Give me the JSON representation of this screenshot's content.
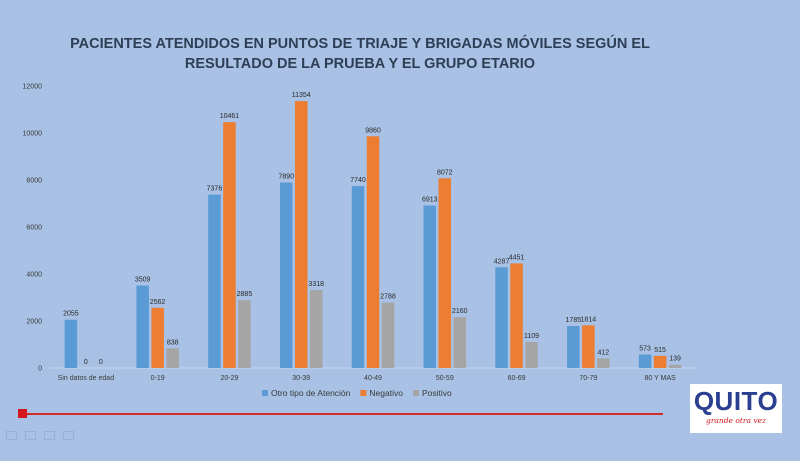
{
  "slide": {
    "title": "PACIENTES ATENDIDOS EN PUNTOS DE TRIAJE Y BRIGADAS MÓVILES SEGÚN EL RESULTADO DE LA PRUEBA Y EL GRUPO ETARIO",
    "logo_text": "QUITO",
    "logo_tagline": "grande otra vez",
    "accent_color": "#d3171b",
    "background_color": "#a8c1e4",
    "toolbar_icons": [
      "pointer-icon",
      "pen-icon",
      "screen-icon",
      "menu-icon"
    ]
  },
  "chart_data": {
    "type": "bar",
    "title": "PACIENTES ATENDIDOS EN PUNTOS DE TRIAJE Y BRIGADAS MÓVILES SEGÚN EL RESULTADO DE LA PRUEBA Y EL GRUPO ETARIO",
    "categories": [
      "Sin datos de edad",
      "0-19",
      "20-29",
      "30-39",
      "40-49",
      "50-59",
      "60-69",
      "70-79",
      "80 Y MAS"
    ],
    "series": [
      {
        "name": "Otro tipo de Atención",
        "color": "#5b9bd5",
        "values": [
          2055,
          3509,
          7376,
          7890,
          7740,
          6913,
          4287,
          1785,
          573
        ]
      },
      {
        "name": "Negativo",
        "color": "#ed7d31",
        "values": [
          0,
          2562,
          10461,
          11354,
          9860,
          8072,
          4451,
          1814,
          515
        ]
      },
      {
        "name": "Positivo",
        "color": "#a5a5a5",
        "values": [
          0,
          838,
          2885,
          3318,
          2788,
          2160,
          1109,
          412,
          139
        ]
      }
    ],
    "yticks": [
      0,
      2000,
      4000,
      6000,
      8000,
      10000,
      12000
    ],
    "ylim": [
      0,
      12000
    ],
    "grid": false,
    "legend": "bottom",
    "data_labels": true
  }
}
